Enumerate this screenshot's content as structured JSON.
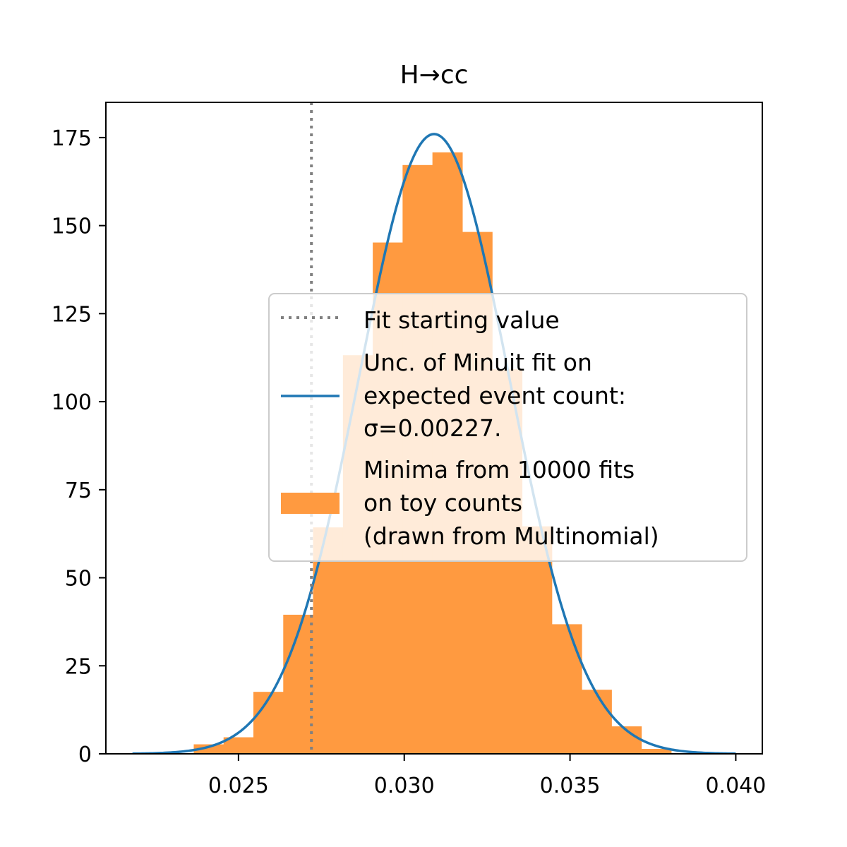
{
  "chart_data": {
    "type": "bar",
    "title": "H→cc",
    "xlabel": "",
    "ylabel": "",
    "xlim": [
      0.021,
      0.0408
    ],
    "ylim": [
      0,
      185
    ],
    "xticks": [
      0.025,
      0.03,
      0.035,
      0.04
    ],
    "xtick_labels": [
      "0.025",
      "0.030",
      "0.035",
      "0.040"
    ],
    "yticks": [
      0,
      25,
      50,
      75,
      100,
      125,
      150,
      175
    ],
    "ytick_labels": [
      "0",
      "25",
      "50",
      "75",
      "100",
      "125",
      "150",
      "175"
    ],
    "grid": false,
    "legend_position": "center-right",
    "histogram": {
      "name": "Minima from 10000 fits on toy counts (drawn from Multinomial)",
      "color": "#ff9a40",
      "bin_edges": [
        0.02365,
        0.02455,
        0.02545,
        0.02635,
        0.02725,
        0.02815,
        0.02905,
        0.02995,
        0.03085,
        0.03175,
        0.03265,
        0.03355,
        0.03445,
        0.03535,
        0.03625,
        0.03715,
        0.03805
      ],
      "counts": [
        2.7,
        4.7,
        17.6,
        39.5,
        64.3,
        113.2,
        145.2,
        167.2,
        170.8,
        148.2,
        109.2,
        64.6,
        36.8,
        18.2,
        7.8,
        1.4
      ]
    },
    "gaussian": {
      "name": "Unc. of Minuit fit on expected event count: σ=0.00227.",
      "color": "#1f77b4",
      "mean": 0.0309,
      "sigma": 0.00227,
      "peak": 176,
      "x_range": [
        0.0218,
        0.04
      ]
    },
    "start_line": {
      "name": "Fit starting value",
      "x": 0.0272,
      "color": "#808080"
    },
    "legend": [
      {
        "kind": "dotted",
        "lines": [
          "Fit starting value"
        ]
      },
      {
        "kind": "line",
        "lines": [
          "Unc. of Minuit fit on",
          "expected event count:",
          "σ=0.00227."
        ]
      },
      {
        "kind": "patch",
        "lines": [
          "Minima from 10000 fits",
          "on toy counts",
          "(drawn from Multinomial)"
        ]
      }
    ]
  }
}
